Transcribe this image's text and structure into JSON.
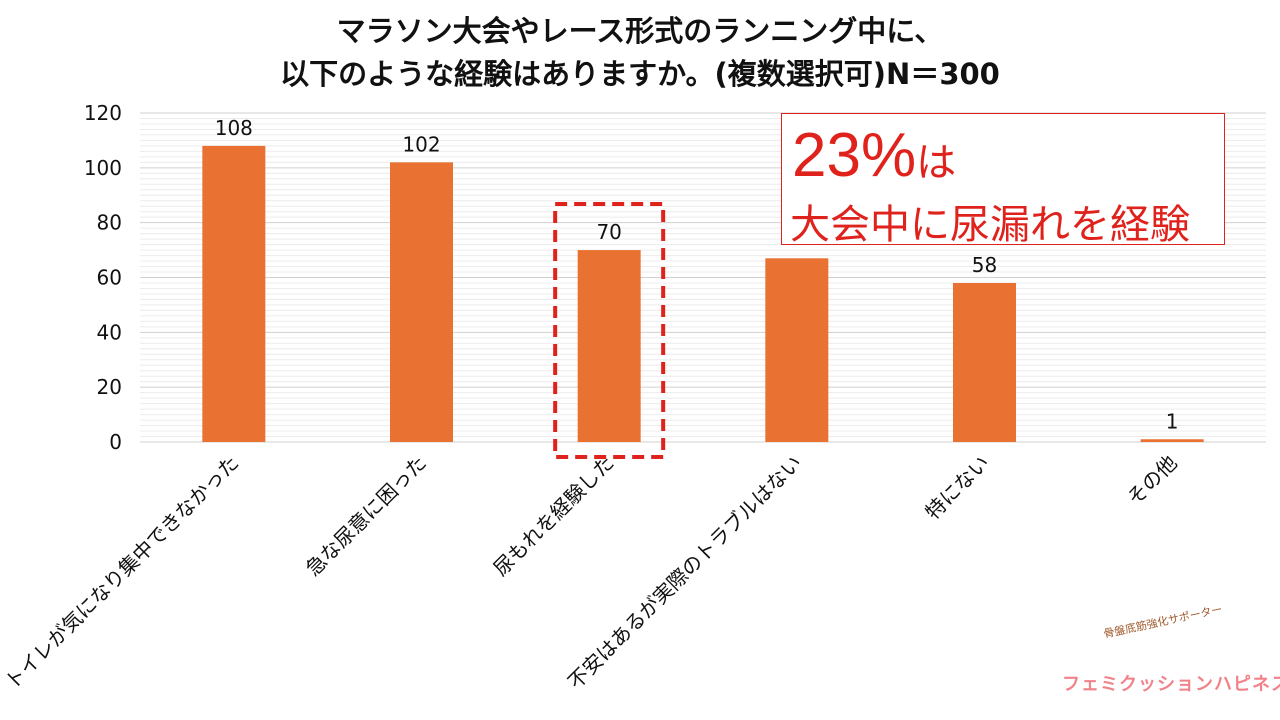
{
  "title": {
    "line1": "マラソン大会やレース形式のランニング中に、",
    "line2": "以下のような経験はありますか。(複数選択可)N＝300"
  },
  "callout": {
    "percent": "23%",
    "suffix": "は",
    "line2": "大会中に尿漏れを経験"
  },
  "brand": {
    "tagline": "骨盤底筋強化サポーター",
    "name": "フェミクッションハピネス"
  },
  "colors": {
    "bar": "#E97132",
    "highlight": "#e0221c",
    "grid": "#d9d9d9"
  },
  "chart_data": {
    "type": "bar",
    "title": "マラソン大会やレース形式のランニング中に、以下のような経験はありますか。(複数選択可)N＝300",
    "categories": [
      "トイレが気になり集中できなかった",
      "急な尿意に困った",
      "尿もれを経験した",
      "不安はあるが実際のトラブルはない",
      "特にない",
      "その他"
    ],
    "values": [
      108,
      102,
      70,
      67,
      58,
      1
    ],
    "data_labels": [
      "108",
      "102",
      "70",
      "",
      "58",
      "1"
    ],
    "highlighted_index": 2,
    "ylim": [
      0,
      120
    ],
    "yticks": [
      0,
      20,
      40,
      60,
      80,
      100,
      120
    ],
    "xlabel": "",
    "ylabel": "",
    "grid": true
  }
}
